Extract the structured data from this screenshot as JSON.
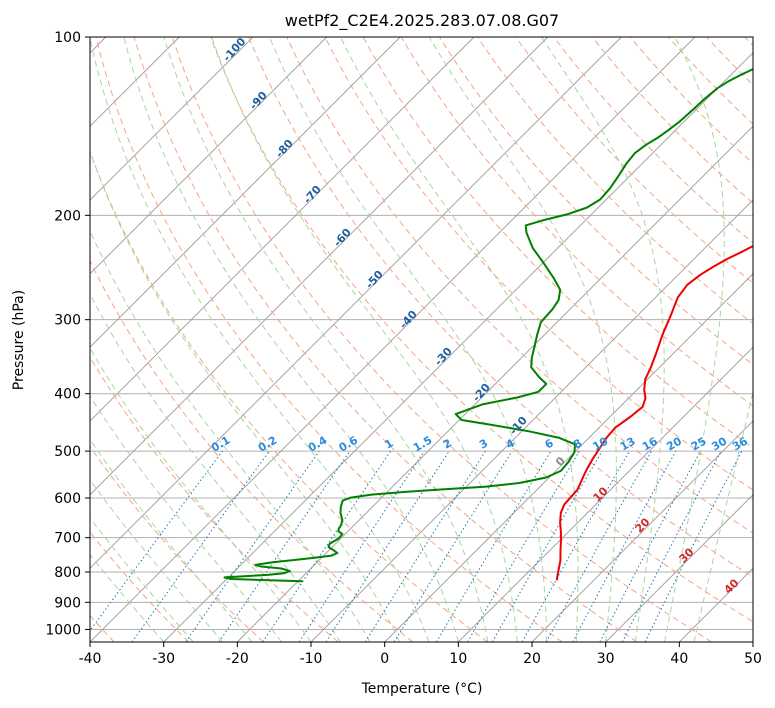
{
  "chart_data": {
    "type": "line",
    "title": "wetPf2_C2E4.2025.283.07.08.G07",
    "xlabel": "Temperature (°C)",
    "ylabel": "Pressure (hPa)",
    "xlim": [
      -40,
      50
    ],
    "ylim": [
      1050,
      100
    ],
    "y_scale": "log",
    "skew": "skew-T log-p",
    "grid": true,
    "x_ticks": [
      "-40",
      "-30",
      "-20",
      "-10",
      "0",
      "10",
      "20",
      "30",
      "40",
      "50"
    ],
    "y_ticks": [
      "100",
      "200",
      "300",
      "400",
      "500",
      "600",
      "700",
      "800",
      "900",
      "1000"
    ],
    "dry_adiabat_labels": [
      "-100",
      "-90",
      "-80",
      "-70",
      "-60",
      "-50",
      "-40",
      "-30",
      "-20",
      "-10"
    ],
    "mixing_ratio_labels": [
      "0.1",
      "0.2",
      "0.4",
      "0.6",
      "1",
      "1.5",
      "2",
      "3",
      "4",
      "6",
      "8",
      "10",
      "13",
      "16",
      "20",
      "25",
      "30",
      "36"
    ],
    "moist_adiabat_labels": [
      "0",
      "10",
      "20",
      "30",
      "40"
    ],
    "colors": {
      "temperature": "#ee0000",
      "dewpoint": "#008000",
      "isotherm": "#999999",
      "dry_adiabat": "#f4a582",
      "moist_adiabat": "#a8d5a2",
      "mixing_ratio": "#1f77b4",
      "dry_label": "#1f5f9f",
      "moist_label": "#d62728",
      "mix_label": "#2a8be0",
      "grid": "#b0b0b0"
    },
    "series": [
      {
        "name": "",
        "kind": "temperature",
        "color": "#ee0000",
        "points": [
          [
            15.0,
            826
          ],
          [
            14.4,
            810
          ],
          [
            13.7,
            790
          ],
          [
            12.8,
            765
          ],
          [
            11.5,
            737
          ],
          [
            10.3,
            711
          ],
          [
            9.0,
            685
          ],
          [
            7.6,
            660
          ],
          [
            6.4,
            636
          ],
          [
            5.7,
            615
          ],
          [
            5.6,
            598
          ],
          [
            5.5,
            581
          ],
          [
            5.0,
            566
          ],
          [
            4.5,
            552
          ],
          [
            4.0,
            537
          ],
          [
            3.4,
            516
          ],
          [
            2.9,
            495
          ],
          [
            2.4,
            475
          ],
          [
            2.2,
            456
          ],
          [
            2.8,
            437
          ],
          [
            3.1,
            421
          ],
          [
            2.3,
            407
          ],
          [
            1.0,
            394
          ],
          [
            -0.3,
            378
          ],
          [
            -1.1,
            362
          ],
          [
            -2.4,
            341
          ],
          [
            -4.0,
            318
          ],
          [
            -5.5,
            295
          ],
          [
            -7.0,
            275
          ],
          [
            -7.4,
            262
          ],
          [
            -7.0,
            252
          ],
          [
            -6.3,
            244
          ],
          [
            -5.5,
            237
          ],
          [
            -4.4,
            230
          ],
          [
            -3.3,
            222
          ],
          [
            -2.2,
            214
          ],
          [
            -1.6,
            207
          ],
          [
            -1.8,
            200
          ],
          [
            -2.3,
            190
          ],
          [
            -2.7,
            181
          ],
          [
            -2.8,
            170
          ],
          [
            -2.6,
            160
          ],
          [
            -2.8,
            152
          ],
          [
            -3.4,
            145
          ],
          [
            -3.7,
            139
          ],
          [
            -3.5,
            134
          ],
          [
            -2.9,
            128
          ],
          [
            -2.6,
            123
          ],
          [
            -2.5,
            117
          ],
          [
            -2.4,
            112
          ],
          [
            -2.4,
            107
          ],
          [
            -2.3,
            104
          ],
          [
            -2.4,
            100
          ]
        ]
      },
      {
        "name": "",
        "kind": "dewpoint",
        "color": "#008000",
        "points": [
          [
            -19.4,
            829
          ],
          [
            -24.0,
            826
          ],
          [
            -29.4,
            822
          ],
          [
            -30.5,
            817
          ],
          [
            -28.0,
            813
          ],
          [
            -25.0,
            809
          ],
          [
            -23.0,
            804
          ],
          [
            -22.5,
            797
          ],
          [
            -24.0,
            789
          ],
          [
            -27.0,
            783
          ],
          [
            -28.0,
            778
          ],
          [
            -26.0,
            770
          ],
          [
            -22.0,
            760
          ],
          [
            -19.0,
            751
          ],
          [
            -18.5,
            743
          ],
          [
            -19.5,
            734
          ],
          [
            -20.5,
            726
          ],
          [
            -20.8,
            717
          ],
          [
            -20.3,
            703
          ],
          [
            -20.4,
            690
          ],
          [
            -21.3,
            683
          ],
          [
            -21.6,
            676
          ],
          [
            -21.8,
            666
          ],
          [
            -22.4,
            652
          ],
          [
            -23.5,
            636
          ],
          [
            -24.3,
            621
          ],
          [
            -24.9,
            606
          ],
          [
            -24.2,
            599
          ],
          [
            -21.8,
            592
          ],
          [
            -17.6,
            586
          ],
          [
            -12.6,
            580
          ],
          [
            -7.3,
            574
          ],
          [
            -3.3,
            566
          ],
          [
            -0.4,
            554
          ],
          [
            0.7,
            540
          ],
          [
            0.5,
            522
          ],
          [
            0.0,
            502
          ],
          [
            -1.0,
            487
          ],
          [
            -4.0,
            475
          ],
          [
            -9.0,
            463
          ],
          [
            -15.2,
            451
          ],
          [
            -19.7,
            443
          ],
          [
            -21.3,
            433
          ],
          [
            -19.0,
            417
          ],
          [
            -15.2,
            406
          ],
          [
            -13.1,
            397
          ],
          [
            -13.1,
            385
          ],
          [
            -15.0,
            375
          ],
          [
            -17.4,
            361
          ],
          [
            -18.6,
            348
          ],
          [
            -19.7,
            334
          ],
          [
            -21.1,
            317
          ],
          [
            -22.2,
            303
          ],
          [
            -22.4,
            288
          ],
          [
            -22.8,
            278
          ],
          [
            -24.0,
            267
          ],
          [
            -26.5,
            255
          ],
          [
            -29.8,
            241
          ],
          [
            -33.4,
            227
          ],
          [
            -36.3,
            214
          ],
          [
            -37.4,
            208
          ],
          [
            -35.8,
            204
          ],
          [
            -33.2,
            199
          ],
          [
            -31.5,
            194
          ],
          [
            -30.8,
            188
          ],
          [
            -31.0,
            180
          ],
          [
            -31.5,
            172
          ],
          [
            -32.1,
            164
          ],
          [
            -32.4,
            157
          ],
          [
            -32.0,
            152
          ],
          [
            -31.4,
            148
          ],
          [
            -31.0,
            144
          ],
          [
            -30.6,
            139
          ],
          [
            -30.4,
            132
          ],
          [
            -30.3,
            127
          ],
          [
            -30.0,
            122
          ],
          [
            -29.5,
            119
          ],
          [
            -28.7,
            116
          ],
          [
            -27.3,
            112
          ],
          [
            -26.1,
            108
          ],
          [
            -25.0,
            104
          ],
          [
            -24.0,
            100
          ]
        ]
      }
    ]
  }
}
